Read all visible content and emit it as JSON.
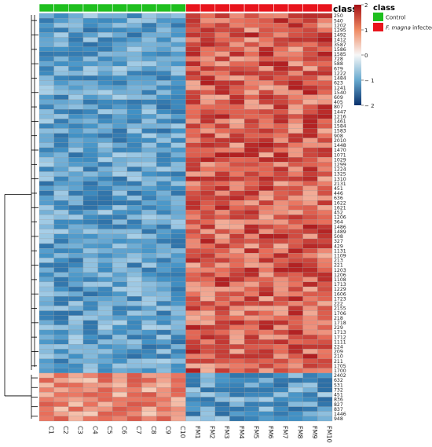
{
  "chart_data": {
    "type": "heatmap",
    "title": "",
    "columns": [
      "C1",
      "C2",
      "C3",
      "C4",
      "C5",
      "C6",
      "C7",
      "C8",
      "C9",
      "C10",
      "FM1",
      "FM2",
      "FM3",
      "FM4",
      "FM5",
      "FM6",
      "FM7",
      "FM8",
      "FM9",
      "FM10"
    ],
    "column_classes": [
      "Control",
      "Control",
      "Control",
      "Control",
      "Control",
      "Control",
      "Control",
      "Control",
      "Control",
      "Control",
      "F. magna infected",
      "F. magna infected",
      "F. magna infected",
      "F. magna infected",
      "F. magna infected",
      "F. magna infected",
      "F. magna infected",
      "F. magna infected",
      "F. magna infected",
      "F. magna infected"
    ],
    "class_bar_title": "class",
    "legend": {
      "title": "class",
      "entries": [
        {
          "label": "Control",
          "color": "#1fbf1f"
        },
        {
          "label": "F. magna infected",
          "color": "#e8141c",
          "italic_part": "F. magna"
        }
      ],
      "placement": "right"
    },
    "color_scale": {
      "ticks": [
        2,
        1,
        0,
        -1,
        -2
      ],
      "tick_labels": [
        "2",
        "1",
        "0",
        "− 1",
        "− 2"
      ],
      "min": -2,
      "max": 2,
      "low_color": "#08306b",
      "mid_color": "#f7f7f7",
      "high_color": "#b2182b"
    },
    "row_labels": [
      "250",
      "540",
      "1202",
      "1295",
      "1492",
      "1412",
      "3587",
      "1586",
      "1585",
      "728",
      "588",
      "679",
      "1222",
      "1484",
      "623",
      "1241",
      "1540",
      "609",
      "405",
      "807",
      "1447",
      "1216",
      "1461",
      "1584",
      "1583",
      "908",
      "2010",
      "1448",
      "1470",
      "1071",
      "1029",
      "1299",
      "1224",
      "1325",
      "1310",
      "2131",
      "451",
      "446",
      "636",
      "1622",
      "1621",
      "452",
      "1206",
      "364",
      "1486",
      "1489",
      "508",
      "327",
      "429",
      "1131",
      "1109",
      "213",
      "221",
      "1203",
      "1206",
      "1108",
      "1713",
      "1229",
      "1606",
      "1723",
      "222",
      "2155",
      "1706",
      "218",
      "1718",
      "229",
      "1713",
      "1712",
      "1111",
      "224",
      "209",
      "210",
      "211",
      "1705",
      "1700",
      "2402",
      "632",
      "531",
      "732",
      "451",
      "836",
      "827",
      "837",
      "1446",
      "948"
    ],
    "group_split_row": 75,
    "rows_positive_in_infected": 75,
    "rows_positive_in_control": 10
  }
}
